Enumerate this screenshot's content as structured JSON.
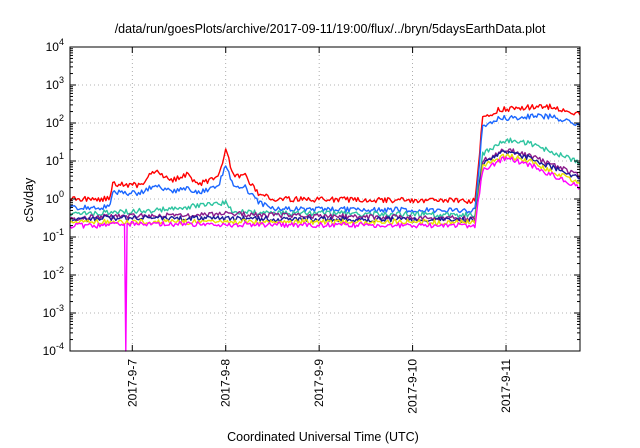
{
  "chart_data": {
    "type": "line",
    "title": "/data/run/goesPlots/archive/2017-09-11/19:00/flux/../bryn/5daysEarthData.plot",
    "xlabel": "Coordinated Universal Time (UTC)",
    "ylabel": "cSv/day",
    "y_scale": "log",
    "ylim": [
      0.0001,
      10000
    ],
    "y_ticks": [
      {
        "value": 0.0001,
        "base": "10",
        "exp": "-4"
      },
      {
        "value": 0.001,
        "base": "10",
        "exp": "-3"
      },
      {
        "value": 0.01,
        "base": "10",
        "exp": "-2"
      },
      {
        "value": 0.1,
        "base": "10",
        "exp": "-1"
      },
      {
        "value": 1,
        "base": "10",
        "exp": "0"
      },
      {
        "value": 10,
        "base": "10",
        "exp": "1"
      },
      {
        "value": 100,
        "base": "10",
        "exp": "2"
      },
      {
        "value": 1000,
        "base": "10",
        "exp": "3"
      },
      {
        "value": 10000,
        "base": "10",
        "exp": "4"
      }
    ],
    "xlim": [
      2017.0906,
      2017.0965
    ],
    "x_ticks": [
      "2017-9-7",
      "2017-9-8",
      "2017-9-9",
      "2017-9-10",
      "2017-9-11"
    ],
    "x_range_dates": [
      "2017-09-06 08:00",
      "2017-09-11 19:00"
    ],
    "grid": true,
    "legend": "none",
    "series": [
      {
        "color": "#ff0000",
        "points": [
          [
            "2017-09-06 08:00",
            1.0
          ],
          [
            "2017-09-06 18:00",
            1.0
          ],
          [
            "2017-09-06 19:00",
            2.5
          ],
          [
            "2017-09-07 02:00",
            2.3
          ],
          [
            "2017-09-07 06:00",
            6.0
          ],
          [
            "2017-09-07 10:00",
            3.0
          ],
          [
            "2017-09-07 14:00",
            4.5
          ],
          [
            "2017-09-07 17:00",
            2.5
          ],
          [
            "2017-09-07 22:00",
            3.5
          ],
          [
            "2017-09-08 00:00",
            20.0
          ],
          [
            "2017-09-08 02:00",
            4.0
          ],
          [
            "2017-09-08 05:00",
            4.0
          ],
          [
            "2017-09-08 08:00",
            1.5
          ],
          [
            "2017-09-08 12:00",
            1.0
          ],
          [
            "2017-09-10 16:00",
            0.9
          ],
          [
            "2017-09-10 18:00",
            130
          ],
          [
            "2017-09-10 22:00",
            220
          ],
          [
            "2017-09-11 06:00",
            260
          ],
          [
            "2017-09-11 12:00",
            270
          ],
          [
            "2017-09-11 19:00",
            160
          ]
        ]
      },
      {
        "color": "#1a66ff",
        "points": [
          [
            "2017-09-06 08:00",
            0.6
          ],
          [
            "2017-09-06 18:00",
            0.6
          ],
          [
            "2017-09-06 19:00",
            1.5
          ],
          [
            "2017-09-07 02:00",
            1.4
          ],
          [
            "2017-09-07 06:00",
            2.5
          ],
          [
            "2017-09-07 10:00",
            1.5
          ],
          [
            "2017-09-07 14:00",
            2.0
          ],
          [
            "2017-09-07 17:00",
            1.5
          ],
          [
            "2017-09-07 22:00",
            2.0
          ],
          [
            "2017-09-08 00:00",
            8.0
          ],
          [
            "2017-09-08 02:00",
            2.0
          ],
          [
            "2017-09-08 05:00",
            2.0
          ],
          [
            "2017-09-08 08:00",
            0.9
          ],
          [
            "2017-09-08 12:00",
            0.55
          ],
          [
            "2017-09-10 16:00",
            0.5
          ],
          [
            "2017-09-10 18:00",
            80
          ],
          [
            "2017-09-10 22:00",
            130
          ],
          [
            "2017-09-11 06:00",
            150
          ],
          [
            "2017-09-11 12:00",
            150
          ],
          [
            "2017-09-11 19:00",
            80
          ]
        ]
      },
      {
        "color": "#2ec4a0",
        "points": [
          [
            "2017-09-06 08:00",
            0.4
          ],
          [
            "2017-09-06 19:00",
            0.45
          ],
          [
            "2017-09-07 06:00",
            0.5
          ],
          [
            "2017-09-08 00:00",
            0.8
          ],
          [
            "2017-09-08 02:00",
            0.45
          ],
          [
            "2017-09-10 16:00",
            0.38
          ],
          [
            "2017-09-10 18:00",
            15
          ],
          [
            "2017-09-11 00:00",
            35
          ],
          [
            "2017-09-11 06:00",
            30
          ],
          [
            "2017-09-11 19:00",
            9
          ]
        ]
      },
      {
        "color": "#8b1a8b",
        "points": [
          [
            "2017-09-06 08:00",
            0.3
          ],
          [
            "2017-09-06 19:00",
            0.35
          ],
          [
            "2017-09-08 00:00",
            0.4
          ],
          [
            "2017-09-10 16:00",
            0.3
          ],
          [
            "2017-09-10 18:00",
            10
          ],
          [
            "2017-09-11 00:00",
            20
          ],
          [
            "2017-09-11 06:00",
            14
          ],
          [
            "2017-09-11 19:00",
            4
          ]
        ]
      },
      {
        "color": "#1a1a99",
        "points": [
          [
            "2017-09-06 08:00",
            0.28
          ],
          [
            "2017-09-06 19:00",
            0.32
          ],
          [
            "2017-09-10 16:00",
            0.28
          ],
          [
            "2017-09-10 18:00",
            9
          ],
          [
            "2017-09-11 00:00",
            18
          ],
          [
            "2017-09-11 06:00",
            12
          ],
          [
            "2017-09-11 19:00",
            3.5
          ]
        ]
      },
      {
        "color": "#e8e000",
        "points": [
          [
            "2017-09-06 08:00",
            0.25
          ],
          [
            "2017-09-10 16:00",
            0.25
          ],
          [
            "2017-09-10 18:00",
            7
          ],
          [
            "2017-09-11 00:00",
            14
          ],
          [
            "2017-09-11 06:00",
            10
          ],
          [
            "2017-09-11 19:00",
            2.5
          ]
        ]
      },
      {
        "color": "#ff00ff",
        "points": [
          [
            "2017-09-06 08:00",
            0.2
          ],
          [
            "2017-09-06 18:00",
            0.2
          ],
          [
            "2017-09-06 19:00",
            0.25
          ],
          [
            "2017-09-06 22:00",
            0.22
          ],
          [
            "2017-09-06 22:20",
            0.0001
          ],
          [
            "2017-09-06 22:40",
            0.22
          ],
          [
            "2017-09-10 16:00",
            0.2
          ],
          [
            "2017-09-10 18:00",
            6
          ],
          [
            "2017-09-11 00:00",
            12
          ],
          [
            "2017-09-11 06:00",
            8
          ],
          [
            "2017-09-11 19:00",
            2
          ]
        ]
      }
    ]
  }
}
